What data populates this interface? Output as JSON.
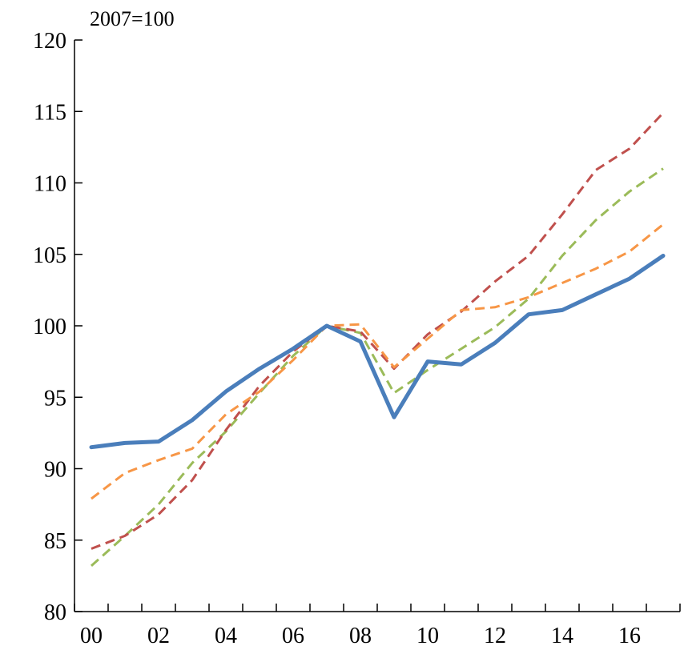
{
  "chart_data": {
    "type": "line",
    "unit_label": "2007=100",
    "x": [
      2000,
      2001,
      2002,
      2003,
      2004,
      2005,
      2006,
      2007,
      2008,
      2009,
      2010,
      2011,
      2012,
      2013,
      2014,
      2015,
      2016,
      2017
    ],
    "x_tick_labels": [
      "00",
      "02",
      "04",
      "06",
      "08",
      "10",
      "12",
      "14",
      "16"
    ],
    "y_tick_labels": [
      "80",
      "85",
      "90",
      "95",
      "100",
      "105",
      "110",
      "115",
      "120"
    ],
    "ylim": [
      80,
      120
    ],
    "series": [
      {
        "color": "#4a7ebb",
        "style": "solid",
        "values": [
          91.5,
          91.8,
          91.9,
          93.4,
          95.4,
          97.0,
          98.4,
          100.0,
          98.9,
          93.6,
          97.5,
          97.3,
          98.8,
          100.8,
          101.1,
          102.2,
          103.3,
          104.9
        ]
      },
      {
        "color": "#f79646",
        "style": "dashed",
        "values": [
          87.9,
          89.7,
          90.6,
          91.4,
          93.8,
          95.4,
          97.6,
          100.0,
          100.1,
          97.1,
          99.1,
          101.1,
          101.3,
          102.0,
          103.0,
          104.0,
          105.2,
          107.1
        ]
      },
      {
        "color": "#9bbb59",
        "style": "dashed",
        "values": [
          83.2,
          85.3,
          87.5,
          90.4,
          92.6,
          95.3,
          97.9,
          100.0,
          99.5,
          95.3,
          96.9,
          98.4,
          99.9,
          101.9,
          104.9,
          107.4,
          109.4,
          111.0
        ]
      },
      {
        "color": "#c0504d",
        "style": "dashed",
        "values": [
          84.4,
          85.3,
          86.8,
          89.2,
          92.7,
          95.8,
          98.2,
          100.0,
          99.6,
          97.0,
          99.4,
          101.0,
          103.1,
          104.9,
          107.8,
          110.9,
          112.4,
          114.9
        ]
      }
    ]
  }
}
